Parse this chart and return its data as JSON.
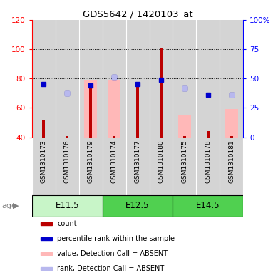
{
  "title": "GDS5642 / 1420103_at",
  "samples": [
    "GSM1310173",
    "GSM1310176",
    "GSM1310179",
    "GSM1310174",
    "GSM1310177",
    "GSM1310180",
    "GSM1310175",
    "GSM1310178",
    "GSM1310181"
  ],
  "ylim_left": [
    40,
    120
  ],
  "ylim_right": [
    0,
    100
  ],
  "yticks_left": [
    40,
    60,
    80,
    100,
    120
  ],
  "yticks_right": [
    0,
    25,
    50,
    75,
    100
  ],
  "ytick_right_labels": [
    "0",
    "25",
    "50",
    "75",
    "100%"
  ],
  "count_values": [
    52,
    41,
    75,
    41,
    76,
    101,
    41,
    44,
    41
  ],
  "rank_values": [
    76,
    70,
    75,
    81,
    76,
    79,
    73,
    69,
    69
  ],
  "pink_bar_top": [
    null,
    null,
    79,
    79,
    null,
    null,
    55,
    null,
    59
  ],
  "light_blue_values": [
    null,
    70,
    null,
    81,
    null,
    null,
    73,
    null,
    69
  ],
  "count_color": "#bb0000",
  "rank_color": "#0000cc",
  "pink_color": "#ffb8b8",
  "light_blue_color": "#b8b8ee",
  "bar_bg_color": "#d4d4d4",
  "group_defs": [
    {
      "label": "E11.5",
      "start": 0,
      "end": 2,
      "color": "#c8f5c8"
    },
    {
      "label": "E12.5",
      "start": 3,
      "end": 5,
      "color": "#50d050"
    },
    {
      "label": "E14.5",
      "start": 6,
      "end": 8,
      "color": "#50d050"
    }
  ],
  "legend_items": [
    {
      "color": "#bb0000",
      "label": "count",
      "shape": "s"
    },
    {
      "color": "#0000cc",
      "label": "percentile rank within the sample",
      "shape": "s"
    },
    {
      "color": "#ffb8b8",
      "label": "value, Detection Call = ABSENT",
      "shape": "s"
    },
    {
      "color": "#b8b8ee",
      "label": "rank, Detection Call = ABSENT",
      "shape": "s"
    }
  ]
}
